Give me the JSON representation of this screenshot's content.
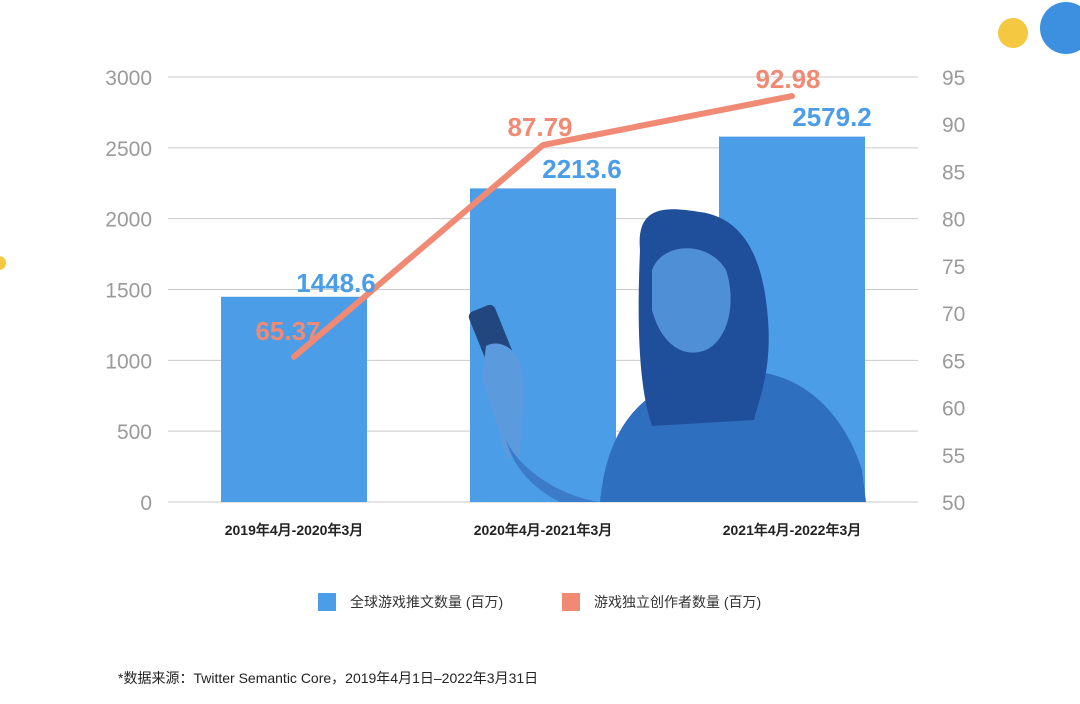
{
  "chart_data": {
    "type": "bar+line",
    "categories": [
      "2019年4月-2020年3月",
      "2020年4月-2021年3月",
      "2021年4月-2022年3月"
    ],
    "series": [
      {
        "name": "全球游戏推文数量 (百万)",
        "type": "bar",
        "axis": "left",
        "values": [
          1448.6,
          2213.6,
          2579.2
        ],
        "labels": [
          "1448.6",
          "2213.6",
          "2579.2"
        ],
        "color": "#4a9de6"
      },
      {
        "name": "游戏独立创作者数量 (百万)",
        "type": "line",
        "axis": "right",
        "values": [
          65.37,
          87.79,
          92.98
        ],
        "labels": [
          "65.37",
          "87.79",
          "92.98"
        ],
        "color": "#f08a74"
      }
    ],
    "y_left": {
      "ylim": [
        0,
        3000
      ],
      "ticks": [
        "0",
        "500",
        "1000",
        "1500",
        "2000",
        "2500",
        "3000"
      ]
    },
    "y_right": {
      "ylim": [
        50,
        95
      ],
      "ticks": [
        "50",
        "55",
        "60",
        "65",
        "70",
        "75",
        "80",
        "85",
        "90",
        "95"
      ]
    },
    "grid": true,
    "legend_position": "bottom"
  },
  "legend": {
    "bar_label": "全球游戏推文数量 (百万)",
    "line_label": "游戏独立创作者数量 (百万)"
  },
  "footnote": "*数据来源：Twitter Semantic Core，2019年4月1日–2022年3月31日",
  "colors": {
    "bar": "#4a9de6",
    "line": "#f08a74",
    "photo": "#2f6fbf",
    "deco_yellow": "#f5c842"
  }
}
